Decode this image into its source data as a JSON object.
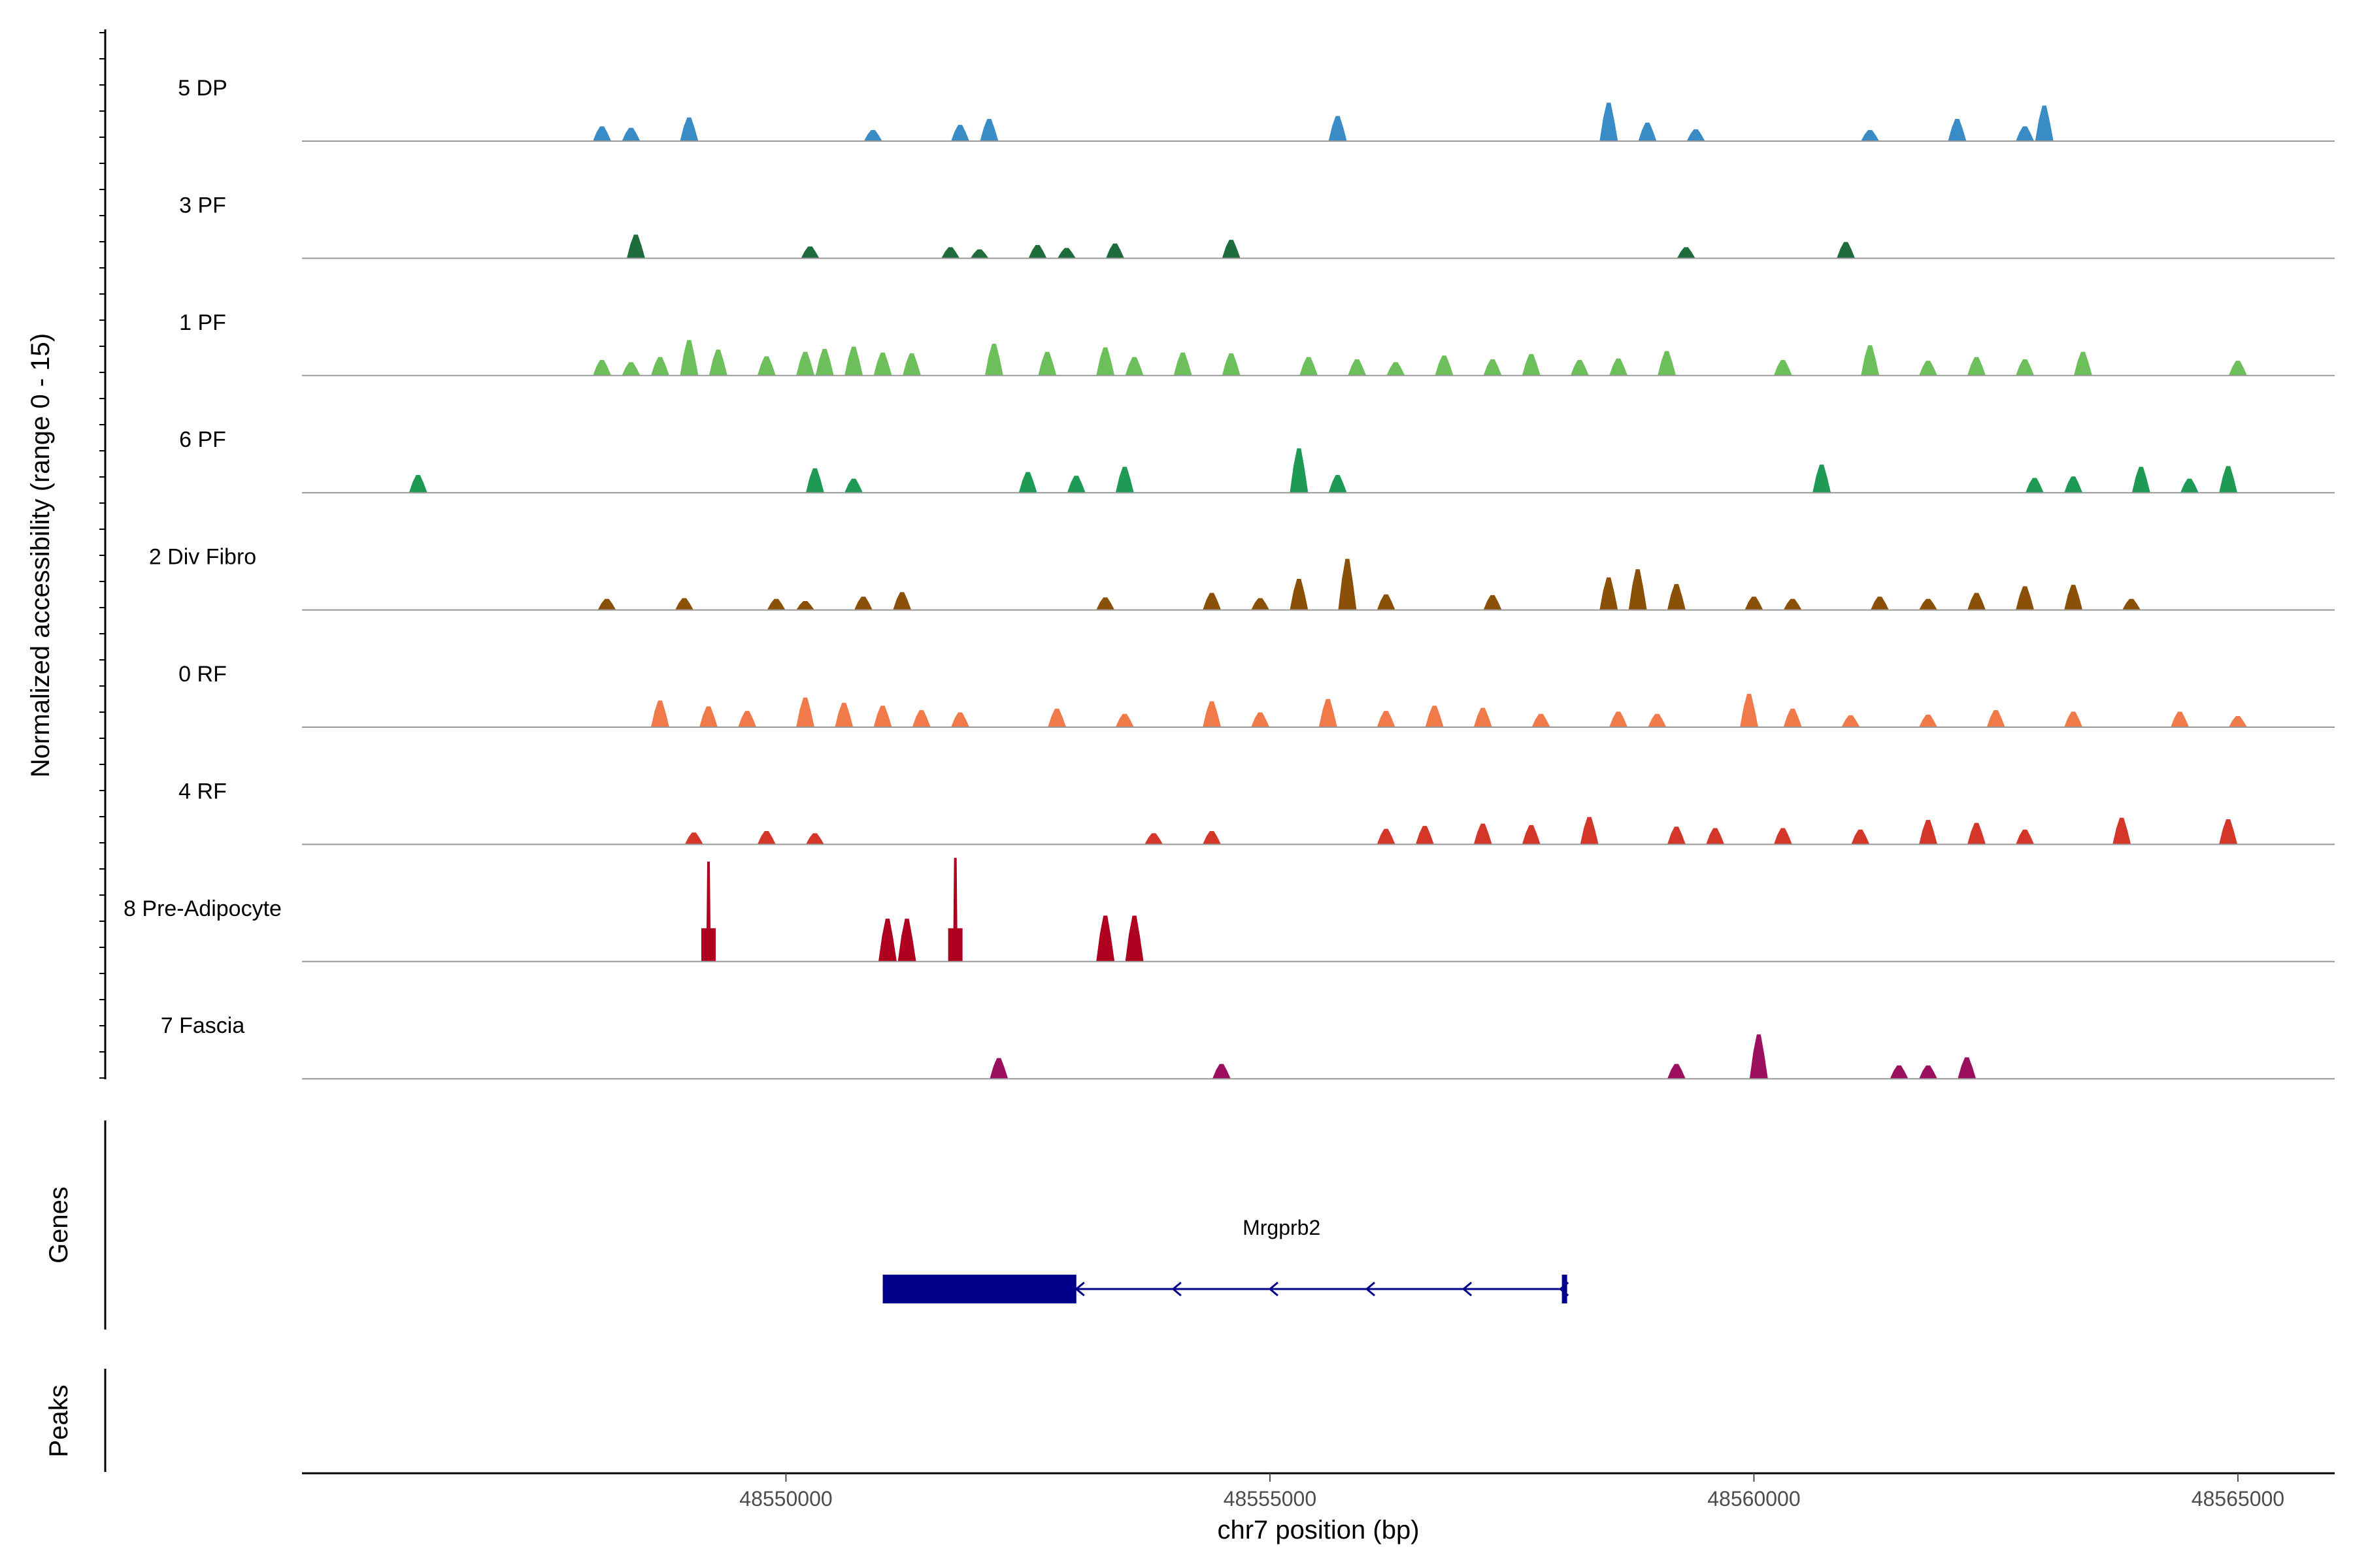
{
  "chart_data": {
    "type": "coverage",
    "title": "",
    "xlabel": "chr7 position (bp)",
    "ylabel": "Normalized accessibility (range 0 - 15)",
    "xlim": [
      48545000,
      48566000
    ],
    "ylim": [
      0,
      15
    ],
    "x_ticks": [
      48550000,
      48555000,
      48560000,
      48565000
    ],
    "tracks": [
      {
        "name": "5 DP",
        "color": "#3a8cc6",
        "peaks": [
          [
            48548100,
            2
          ],
          [
            48548400,
            1.8
          ],
          [
            48549000,
            3.2
          ],
          [
            48550900,
            1.5
          ],
          [
            48551800,
            2.2
          ],
          [
            48552100,
            3.0
          ],
          [
            48555700,
            3.4
          ],
          [
            48558500,
            5.2
          ],
          [
            48558900,
            2.5
          ],
          [
            48559400,
            1.6
          ],
          [
            48561200,
            1.5
          ],
          [
            48562100,
            3.0
          ],
          [
            48562800,
            2.0
          ],
          [
            48563000,
            4.8
          ]
        ]
      },
      {
        "name": "3 PF",
        "color": "#1e6b3c",
        "peaks": [
          [
            48548450,
            3.2
          ],
          [
            48550250,
            1.6
          ],
          [
            48551700,
            1.5
          ],
          [
            48552000,
            1.2
          ],
          [
            48552600,
            1.8
          ],
          [
            48552900,
            1.4
          ],
          [
            48553400,
            2.0
          ],
          [
            48554600,
            2.5
          ],
          [
            48559300,
            1.5
          ],
          [
            48560950,
            2.2
          ]
        ]
      },
      {
        "name": "1 PF",
        "color": "#6cbf5a",
        "peaks": [
          [
            48548100,
            2.1
          ],
          [
            48548400,
            1.8
          ],
          [
            48548700,
            2.5
          ],
          [
            48549000,
            4.8
          ],
          [
            48549300,
            3.5
          ],
          [
            48549800,
            2.6
          ],
          [
            48550200,
            3.2
          ],
          [
            48550400,
            3.6
          ],
          [
            48550700,
            3.9
          ],
          [
            48551000,
            3.1
          ],
          [
            48551300,
            3.0
          ],
          [
            48552150,
            4.3
          ],
          [
            48552700,
            3.2
          ],
          [
            48553300,
            3.8
          ],
          [
            48553600,
            2.5
          ],
          [
            48554100,
            3.1
          ],
          [
            48554600,
            3.0
          ],
          [
            48555400,
            2.5
          ],
          [
            48555900,
            2.2
          ],
          [
            48556300,
            1.8
          ],
          [
            48556800,
            2.7
          ],
          [
            48557300,
            2.2
          ],
          [
            48557700,
            2.9
          ],
          [
            48558200,
            2.1
          ],
          [
            48558600,
            2.3
          ],
          [
            48559100,
            3.3
          ],
          [
            48560300,
            2.1
          ],
          [
            48561200,
            4.1
          ],
          [
            48561800,
            2.0
          ],
          [
            48562300,
            2.5
          ],
          [
            48562800,
            2.2
          ],
          [
            48563400,
            3.2
          ],
          [
            48565000,
            2.0
          ]
        ]
      },
      {
        "name": "6 PF",
        "color": "#1e9a55",
        "peaks": [
          [
            48546200,
            2.4
          ],
          [
            48550300,
            3.3
          ],
          [
            48550700,
            1.9
          ],
          [
            48552500,
            2.8
          ],
          [
            48553000,
            2.3
          ],
          [
            48553500,
            3.5
          ],
          [
            48555300,
            6.0
          ],
          [
            48555700,
            2.4
          ],
          [
            48560700,
            3.8
          ],
          [
            48562900,
            2.0
          ],
          [
            48563300,
            2.2
          ],
          [
            48564000,
            3.5
          ],
          [
            48564500,
            1.9
          ],
          [
            48564900,
            3.6
          ]
        ]
      },
      {
        "name": "2 Div Fibro",
        "color": "#8b5008",
        "peaks": [
          [
            48548150,
            1.5
          ],
          [
            48548950,
            1.6
          ],
          [
            48549900,
            1.5
          ],
          [
            48550200,
            1.2
          ],
          [
            48550800,
            1.8
          ],
          [
            48551200,
            2.4
          ],
          [
            48553300,
            1.7
          ],
          [
            48554400,
            2.3
          ],
          [
            48554900,
            1.6
          ],
          [
            48555300,
            4.2
          ],
          [
            48555800,
            6.9
          ],
          [
            48556200,
            2.1
          ],
          [
            48557300,
            2.0
          ],
          [
            48558500,
            4.4
          ],
          [
            48558800,
            5.5
          ],
          [
            48559200,
            3.5
          ],
          [
            48560000,
            1.8
          ],
          [
            48560400,
            1.5
          ],
          [
            48561300,
            1.8
          ],
          [
            48561800,
            1.5
          ],
          [
            48562300,
            2.3
          ],
          [
            48562800,
            3.2
          ],
          [
            48563300,
            3.4
          ],
          [
            48563900,
            1.5
          ]
        ]
      },
      {
        "name": "0 RF",
        "color": "#f07a4a",
        "peaks": [
          [
            48548700,
            3.6
          ],
          [
            48549200,
            2.8
          ],
          [
            48549600,
            2.2
          ],
          [
            48550200,
            4.0
          ],
          [
            48550600,
            3.3
          ],
          [
            48551000,
            2.9
          ],
          [
            48551400,
            2.3
          ],
          [
            48551800,
            2.0
          ],
          [
            48552800,
            2.5
          ],
          [
            48553500,
            1.8
          ],
          [
            48554400,
            3.5
          ],
          [
            48554900,
            2.0
          ],
          [
            48555600,
            3.8
          ],
          [
            48556200,
            2.2
          ],
          [
            48556700,
            2.9
          ],
          [
            48557200,
            2.6
          ],
          [
            48557800,
            1.8
          ],
          [
            48558600,
            2.1
          ],
          [
            48559000,
            1.8
          ],
          [
            48559950,
            4.5
          ],
          [
            48560400,
            2.5
          ],
          [
            48561000,
            1.6
          ],
          [
            48561800,
            1.7
          ],
          [
            48562500,
            2.3
          ],
          [
            48563300,
            2.1
          ],
          [
            48564400,
            2.1
          ],
          [
            48565000,
            1.5
          ]
        ]
      },
      {
        "name": "4 RF",
        "color": "#d4372a",
        "peaks": [
          [
            48549050,
            1.6
          ],
          [
            48549800,
            1.8
          ],
          [
            48550300,
            1.5
          ],
          [
            48553800,
            1.5
          ],
          [
            48554400,
            1.8
          ],
          [
            48556200,
            2.1
          ],
          [
            48556600,
            2.5
          ],
          [
            48557200,
            2.8
          ],
          [
            48557700,
            2.6
          ],
          [
            48558300,
            3.7
          ],
          [
            48559200,
            2.4
          ],
          [
            48559600,
            2.2
          ],
          [
            48560300,
            2.2
          ],
          [
            48561100,
            2.0
          ],
          [
            48561800,
            3.3
          ],
          [
            48562300,
            2.9
          ],
          [
            48562800,
            2.0
          ],
          [
            48563800,
            3.6
          ],
          [
            48564900,
            3.4
          ]
        ]
      },
      {
        "name": "8 Pre-Adipocyte",
        "color": "#b00020",
        "peaks": [
          [
            48549200,
            13.5
          ],
          [
            48551050,
            5.8
          ],
          [
            48551250,
            5.8
          ],
          [
            48551750,
            14.0
          ],
          [
            48553300,
            6.2
          ],
          [
            48553600,
            6.2
          ]
        ]
      },
      {
        "name": "7 Fascia",
        "color": "#9b0f5e",
        "peaks": [
          [
            48552200,
            2.8
          ],
          [
            48554500,
            2.0
          ],
          [
            48559200,
            2.0
          ],
          [
            48560050,
            6.0
          ],
          [
            48561500,
            1.8
          ],
          [
            48561800,
            1.8
          ],
          [
            48562200,
            2.9
          ]
        ]
      }
    ],
    "genes_panel": {
      "title": "Genes",
      "genes": [
        {
          "name": "Mrgprb2",
          "start": 48551000,
          "end": 48558050,
          "exon": [
            48551000,
            48553000
          ],
          "strand": "-"
        }
      ]
    },
    "peaks_panel": {
      "title": "Peaks"
    },
    "colors": {
      "baseline": "#999999",
      "gene": "#00008b",
      "axis": "#000000"
    }
  }
}
